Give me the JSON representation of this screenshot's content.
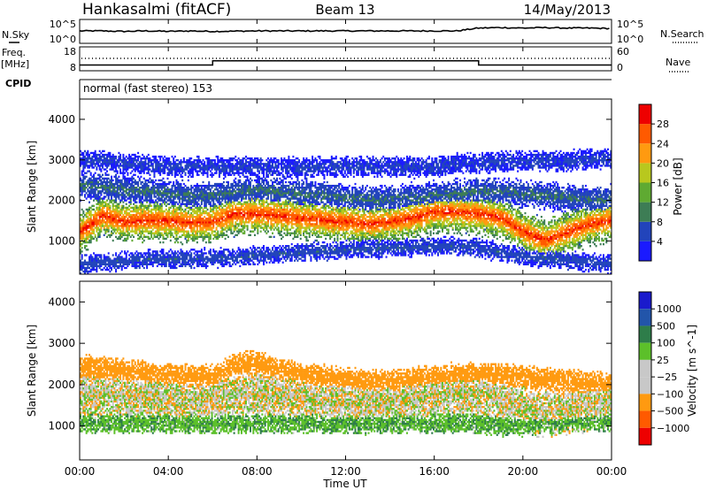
{
  "header": {
    "station": "Hankasalmi (fitACF)",
    "beam": "Beam 13",
    "date": "14/May/2013"
  },
  "left_labels": {
    "nsky": "N.Sky",
    "freq_line1": "Freq.",
    "freq_line2": "[MHz]",
    "cpid": "CPID"
  },
  "right_labels": {
    "nsearch": "N.Search",
    "nave": "Nave"
  },
  "noise_panel": {
    "ytick_top": "10^5",
    "ytick_bottom": "10^0",
    "rtick_top": "10^5",
    "rtick_bottom": "10^0"
  },
  "freq_panel": {
    "ytick_top": "18",
    "ytick_bottom": "8",
    "rtick_top": "60",
    "rtick_bottom": "0"
  },
  "cpid_text": "normal (fast stereo) 153",
  "x_axis": {
    "label": "Time UT",
    "ticks": [
      "00:00",
      "04:00",
      "08:00",
      "12:00",
      "16:00",
      "20:00",
      "00:00"
    ]
  },
  "power_panel": {
    "ylabel": "Slant Range [km]",
    "yticks": [
      "1000",
      "2000",
      "3000",
      "4000"
    ],
    "colorbar_label": "Power [dB]",
    "colorbar_ticks": [
      "4",
      "8",
      "12",
      "16",
      "20",
      "24",
      "28"
    ],
    "colors": [
      "#1a1aff",
      "#2244bb",
      "#3d7d55",
      "#5faa32",
      "#b8c81e",
      "#ff9a10",
      "#ff5a00",
      "#ee0000"
    ]
  },
  "velocity_panel": {
    "ylabel": "Slant Range [km]",
    "yticks": [
      "1000",
      "2000",
      "3000",
      "4000"
    ],
    "colorbar_label": "Velocity [m s^-1]",
    "colorbar_ticks": [
      "1000",
      "500",
      "100",
      "25",
      "−25",
      "−100",
      "−500",
      "−1000"
    ],
    "colors": [
      "#1a1acc",
      "#2255aa",
      "#2e7d4a",
      "#5cc02a",
      "#c8c8c8",
      "#c8c8c8",
      "#ff9a10",
      "#ff5a00",
      "#ee0000"
    ]
  },
  "chart_data": [
    {
      "type": "line",
      "name": "noise",
      "x": [
        0,
        1,
        2,
        3,
        4,
        5,
        6,
        8,
        10,
        12,
        14,
        16,
        17,
        18,
        19,
        20,
        21,
        22,
        23,
        24
      ],
      "values": [
        2.6,
        2.6,
        2.5,
        2.6,
        2.5,
        2.6,
        2.5,
        2.6,
        2.6,
        2.6,
        2.6,
        2.6,
        2.6,
        3.2,
        3.3,
        3.2,
        3.3,
        3.2,
        3.2,
        3.1
      ],
      "ylim": [
        0,
        5
      ],
      "xlim": [
        0,
        24
      ]
    },
    {
      "type": "line",
      "name": "freq",
      "x": [
        0,
        6,
        6,
        18,
        18,
        24
      ],
      "values": [
        10.4,
        10.4,
        12.2,
        12.2,
        10.4,
        10.4
      ],
      "ylim": [
        8,
        18
      ],
      "xlim": [
        0,
        24
      ]
    },
    {
      "type": "heatmap",
      "title": "Power [dB]",
      "xlabel": "Time UT",
      "ylabel": "Slant Range [km]",
      "xlim": [
        0,
        24
      ],
      "ylim": [
        180,
        4500
      ],
      "zlim": [
        0,
        30
      ],
      "x": [
        0,
        1,
        2,
        3,
        4,
        5,
        6,
        7,
        8,
        9,
        10,
        11,
        12,
        13,
        14,
        15,
        16,
        17,
        18,
        19,
        20,
        21,
        22,
        23,
        24
      ],
      "bands": [
        {
          "range": [
            1200,
            1600,
            1450,
            1500,
            1480,
            1430,
            1450,
            1650,
            1650,
            1600,
            1550,
            1500,
            1450,
            1400,
            1450,
            1550,
            1700,
            1700,
            1650,
            1550,
            1200,
            1000,
            1200,
            1400,
            1500
          ],
          "width": 450,
          "peak": 26
        },
        {
          "range": [
            2350,
            2300,
            2250,
            2200,
            2150,
            2100,
            2100,
            2200,
            2250,
            2200,
            2150,
            2100,
            2050,
            2000,
            2000,
            2050,
            2100,
            2150,
            2200,
            2200,
            2150,
            2100,
            2050,
            2000,
            2000
          ],
          "width": 300,
          "peak": 8
        },
        {
          "range": [
            3000,
            2950,
            2900,
            2850,
            2800,
            2800,
            2800,
            2800,
            2800,
            2800,
            2800,
            2800,
            2800,
            2800,
            2800,
            2800,
            2800,
            2900,
            2900,
            2950,
            2950,
            2950,
            2950,
            3000,
            3000
          ],
          "width": 220,
          "peak": 5
        },
        {
          "range": [
            400,
            450,
            500,
            520,
            530,
            540,
            560,
            580,
            620,
            650,
            700,
            740,
            760,
            780,
            800,
            820,
            850,
            860,
            800,
            700,
            600,
            550,
            500,
            450,
            400
          ],
          "width": 200,
          "peak": 6
        }
      ]
    },
    {
      "type": "heatmap",
      "title": "Velocity [m s^-1]",
      "xlabel": "Time UT",
      "ylabel": "Slant Range [km]",
      "xlim": [
        0,
        24
      ],
      "ylim": [
        180,
        4500
      ],
      "zlim": [
        -1000,
        1000
      ],
      "x": [
        0,
        1,
        2,
        3,
        4,
        5,
        6,
        7,
        8,
        9,
        10,
        11,
        12,
        13,
        14,
        15,
        16,
        17,
        18,
        19,
        20,
        21,
        22,
        23,
        24
      ],
      "bands": [
        {
          "range": [
            1700,
            1750,
            1700,
            1650,
            1650,
            1600,
            1650,
            1750,
            1750,
            1700,
            1650,
            1600,
            1550,
            1500,
            1550,
            1650,
            1750,
            1800,
            1750,
            1600,
            1400,
            1300,
            1350,
            1500,
            1600
          ],
          "width": 500,
          "value": 0
        },
        {
          "range": [
            2400,
            2350,
            2300,
            2250,
            2200,
            2150,
            2150,
            2450,
            2500,
            2350,
            2200,
            2150,
            2100,
            2050,
            2050,
            2100,
            2150,
            2200,
            2250,
            2200,
            2150,
            2100,
            2050,
            2000,
            2000
          ],
          "width": 260,
          "value": -200
        },
        {
          "range": [
            1050,
            1050,
            1050,
            1050,
            1050,
            1050,
            1050,
            1050,
            1050,
            1050,
            1050,
            1050,
            1050,
            1050,
            1050,
            1050,
            1050,
            1050,
            1050,
            1000,
            1000,
            1050,
            1100,
            1100,
            1100
          ],
          "width": 220,
          "value": 80
        }
      ]
    }
  ]
}
